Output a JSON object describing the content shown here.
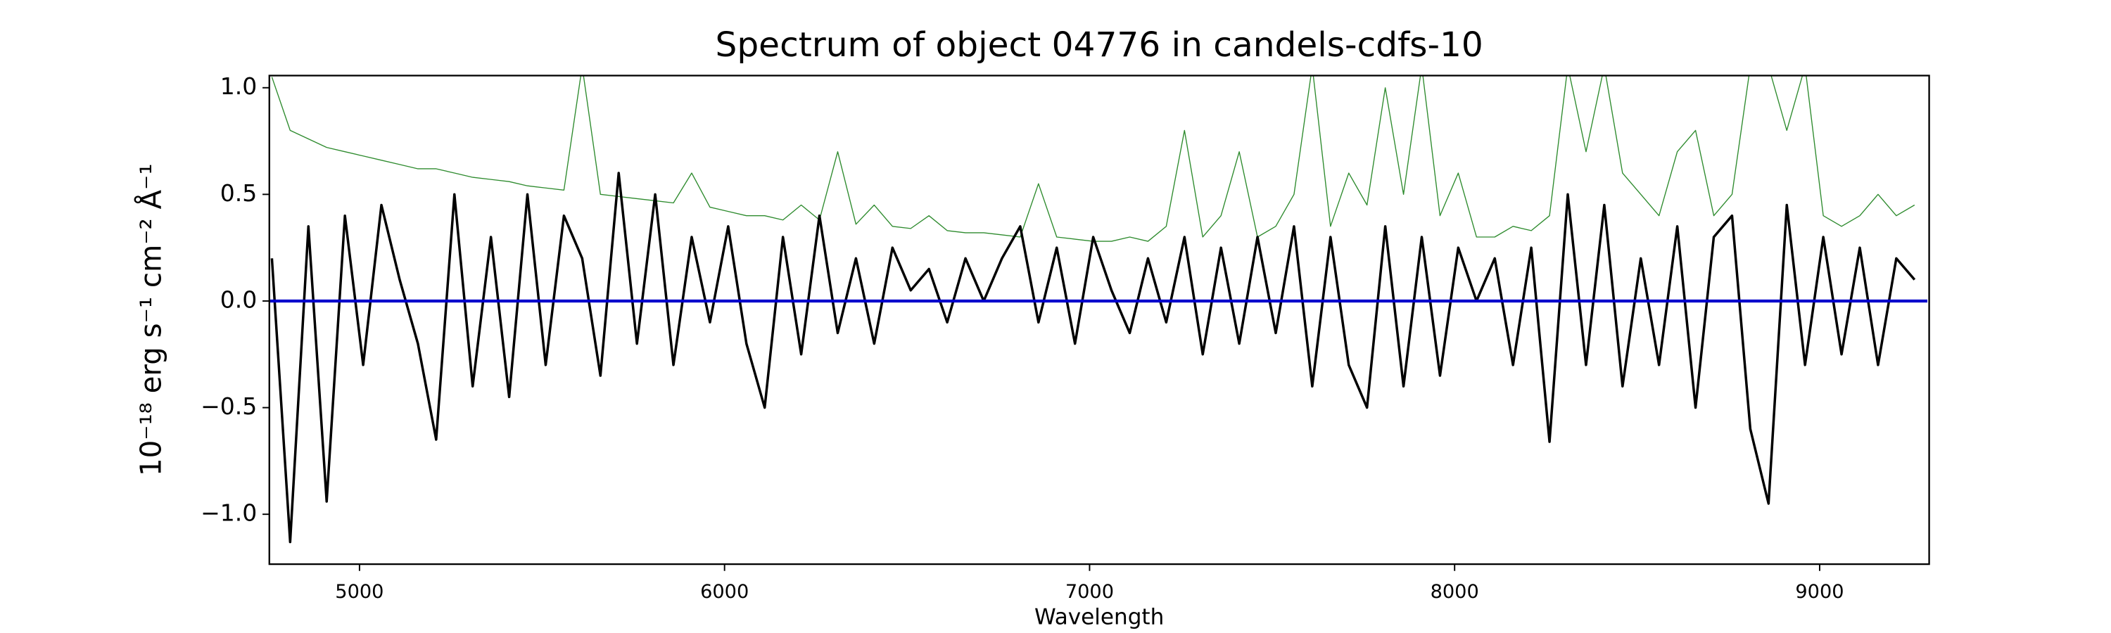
{
  "chart_data": {
    "type": "line",
    "title": "Spectrum of object 04776 in candels-cdfs-10",
    "x_label": "Wavelength",
    "y_label": "10⁻¹⁸ erg s⁻¹ cm⁻² Å⁻¹",
    "x": [
      4760,
      4810,
      4860,
      4910,
      4960,
      5010,
      5060,
      5110,
      5160,
      5210,
      5260,
      5310,
      5360,
      5410,
      5460,
      5510,
      5560,
      5610,
      5660,
      5710,
      5760,
      5810,
      5860,
      5910,
      5960,
      6010,
      6060,
      6110,
      6160,
      6210,
      6260,
      6310,
      6360,
      6410,
      6460,
      6510,
      6560,
      6610,
      6660,
      6710,
      6760,
      6810,
      6860,
      6910,
      6960,
      7010,
      7060,
      7110,
      7160,
      7210,
      7260,
      7310,
      7360,
      7410,
      7460,
      7510,
      7560,
      7610,
      7660,
      7710,
      7760,
      7810,
      7860,
      7910,
      7960,
      8010,
      8060,
      8110,
      8160,
      8210,
      8260,
      8310,
      8360,
      8410,
      8460,
      8510,
      8560,
      8610,
      8660,
      8710,
      8760,
      8810,
      8860,
      8910,
      8960,
      9010,
      9060,
      9110,
      9160,
      9210,
      9260
    ],
    "series": [
      {
        "color": "#2e8b2e",
        "values": [
          1.05,
          0.8,
          0.76,
          0.72,
          0.7,
          0.68,
          0.66,
          0.64,
          0.62,
          0.62,
          0.6,
          0.58,
          0.57,
          0.56,
          0.54,
          0.53,
          0.52,
          1.1,
          0.5,
          0.49,
          0.48,
          0.47,
          0.46,
          0.6,
          0.44,
          0.42,
          0.4,
          0.4,
          0.38,
          0.45,
          0.38,
          0.7,
          0.36,
          0.45,
          0.35,
          0.34,
          0.4,
          0.33,
          0.32,
          0.32,
          0.31,
          0.3,
          0.55,
          0.3,
          0.29,
          0.28,
          0.28,
          0.3,
          0.28,
          0.35,
          0.8,
          0.3,
          0.4,
          0.7,
          0.3,
          0.35,
          0.5,
          1.1,
          0.35,
          0.6,
          0.45,
          1.0,
          0.5,
          1.1,
          0.4,
          0.6,
          0.3,
          0.3,
          0.35,
          0.33,
          0.4,
          1.1,
          0.7,
          1.1,
          0.6,
          0.5,
          0.4,
          0.7,
          0.8,
          0.4,
          0.5,
          1.1,
          1.1,
          0.8,
          1.1,
          0.4,
          0.35,
          0.4,
          0.5,
          0.4,
          0.45
        ]
      },
      {
        "color": "#000000",
        "values": [
          0.2,
          -1.13,
          0.35,
          -0.94,
          0.4,
          -0.3,
          0.45,
          0.1,
          -0.2,
          -0.65,
          0.5,
          -0.4,
          0.3,
          -0.45,
          0.5,
          -0.3,
          0.4,
          0.2,
          -0.35,
          0.6,
          -0.2,
          0.5,
          -0.3,
          0.3,
          -0.1,
          0.35,
          -0.2,
          -0.5,
          0.3,
          -0.25,
          0.4,
          -0.15,
          0.2,
          -0.2,
          0.25,
          0.05,
          0.15,
          -0.1,
          0.2,
          0.0,
          0.2,
          0.35,
          -0.1,
          0.25,
          -0.2,
          0.3,
          0.05,
          -0.15,
          0.2,
          -0.1,
          0.3,
          -0.25,
          0.25,
          -0.2,
          0.3,
          -0.15,
          0.35,
          -0.4,
          0.3,
          -0.3,
          -0.5,
          0.35,
          -0.4,
          0.3,
          -0.35,
          0.25,
          0.0,
          0.2,
          -0.3,
          0.25,
          -0.66,
          0.5,
          -0.3,
          0.45,
          -0.4,
          0.2,
          -0.3,
          0.35,
          -0.5,
          0.3,
          0.4,
          -0.6,
          -0.95,
          0.45,
          -0.3,
          0.3,
          -0.25,
          0.25,
          -0.3,
          0.2,
          0.1
        ]
      },
      {
        "color": "#0000cc",
        "x": [
          4755,
          9295
        ],
        "values": [
          0,
          0
        ]
      }
    ],
    "xlim": [
      4753,
      9300
    ],
    "ylim": [
      -1.234,
      1.057
    ],
    "xticks": [
      5000,
      6000,
      7000,
      8000,
      9000
    ],
    "yticks": [
      {
        "value": -1.0,
        "label": "−1.0"
      },
      {
        "value": -0.5,
        "label": "−0.5"
      },
      {
        "value": 0.0,
        "label": "0.0"
      },
      {
        "value": 0.5,
        "label": "0.5"
      },
      {
        "value": 1.0,
        "label": "1.0"
      }
    ]
  }
}
